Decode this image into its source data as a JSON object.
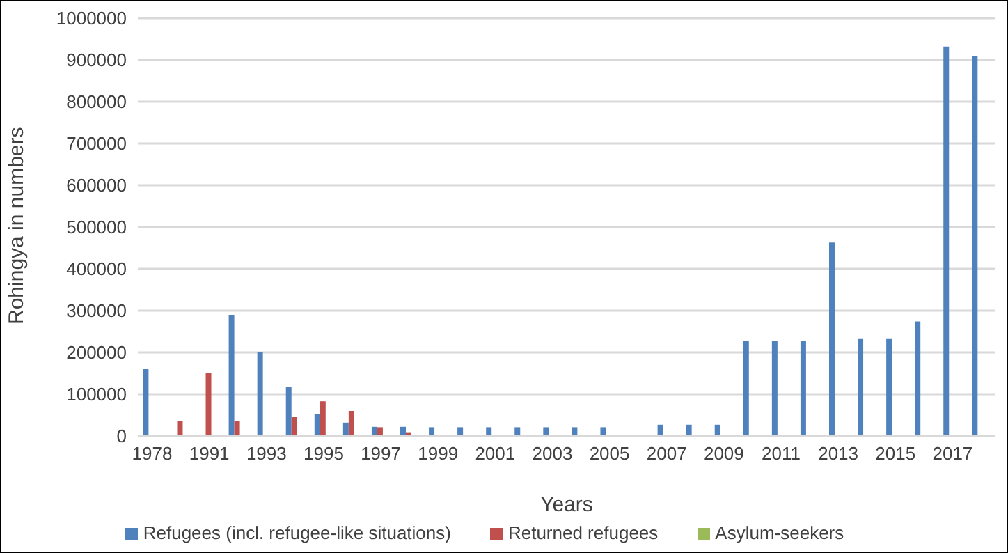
{
  "chart_data": {
    "type": "bar",
    "xlabel": "Years",
    "ylabel": "Rohingya in numbers",
    "categories": [
      "1978",
      null,
      "1991",
      null,
      "1993",
      null,
      "1995",
      null,
      "1997",
      null,
      "1999",
      null,
      "2001",
      null,
      "2003",
      null,
      "2005",
      null,
      "2007",
      null,
      "2009",
      null,
      "2011",
      null,
      "2013",
      null,
      "2015",
      null,
      "2017",
      null
    ],
    "series": [
      {
        "name": "Refugees (incl. refugee-like situations)",
        "color": "#4f81bd",
        "values": [
          160000,
          null,
          null,
          290000,
          200000,
          118000,
          52000,
          32000,
          22000,
          22000,
          21000,
          21000,
          21000,
          21000,
          21000,
          21000,
          21000,
          null,
          27000,
          27000,
          27000,
          228000,
          228000,
          228000,
          463000,
          232000,
          232000,
          274000,
          932000,
          910000
        ]
      },
      {
        "name": "Returned refugees",
        "color": "#c0504d",
        "values": [
          null,
          36000,
          151000,
          36000,
          3000,
          45000,
          83000,
          60000,
          21000,
          9000,
          null,
          null,
          null,
          null,
          null,
          null,
          null,
          null,
          null,
          null,
          null,
          null,
          null,
          null,
          null,
          null,
          null,
          null,
          null,
          null
        ]
      },
      {
        "name": "Asylum-seekers",
        "color": "#9bbb59",
        "values": [
          null,
          null,
          null,
          null,
          null,
          null,
          null,
          null,
          null,
          null,
          null,
          null,
          null,
          null,
          null,
          null,
          null,
          null,
          null,
          null,
          null,
          null,
          null,
          null,
          null,
          null,
          null,
          null,
          null,
          null
        ]
      }
    ],
    "ylim": [
      0,
      1000000
    ],
    "yticks": [
      0,
      100000,
      200000,
      300000,
      400000,
      500000,
      600000,
      700000,
      800000,
      900000,
      1000000
    ],
    "grid": "y",
    "legend": "bottom"
  }
}
